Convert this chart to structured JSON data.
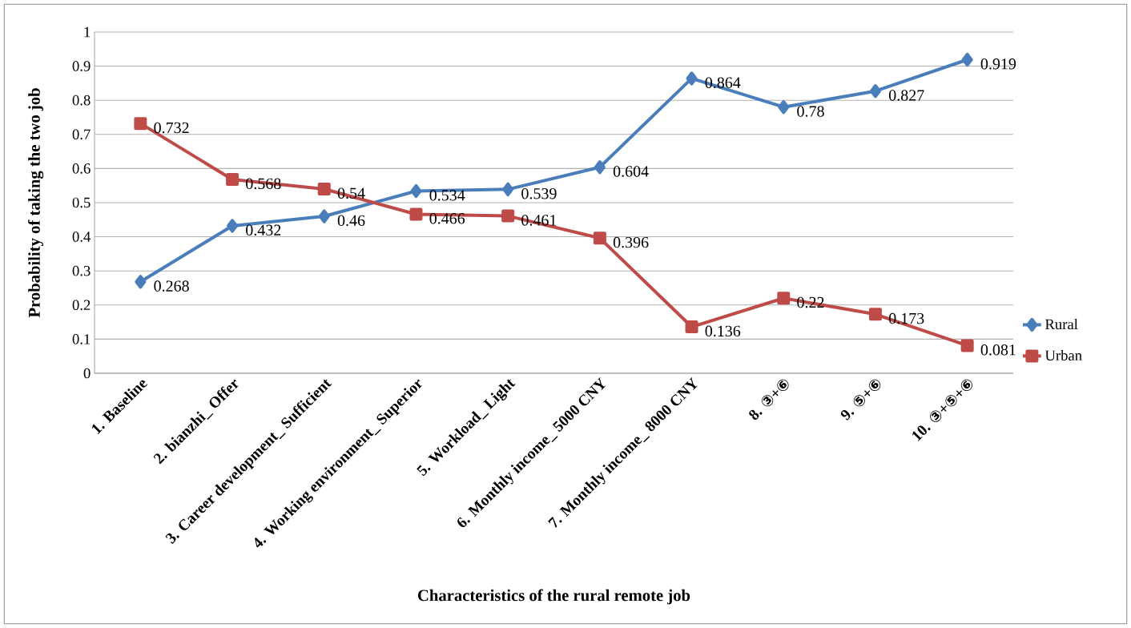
{
  "chart_data": {
    "type": "line",
    "xlabel": "Characteristics   of   the   rural   remote   job",
    "ylabel": "Probability of taking the two job",
    "categories": [
      "1. Baseline",
      "2. bianzhi_ Offer",
      "3. Career development_ Sufficient",
      "4. Working environment_ Superior",
      "5. Workload_ Light",
      "6. Monthly income_ 5000 CNY",
      "7. Monthly income_ 8000 CNY",
      "8. ③+⑥",
      "9. ⑤+⑥",
      "10. ③+⑤+⑥"
    ],
    "series": [
      {
        "name": "Rural",
        "color": "#4a7ebb",
        "marker": "diamond",
        "values": [
          0.268,
          0.432,
          0.46,
          0.534,
          0.539,
          0.604,
          0.864,
          0.78,
          0.827,
          0.919
        ]
      },
      {
        "name": "Urban",
        "color": "#be4b48",
        "marker": "square",
        "values": [
          0.732,
          0.568,
          0.54,
          0.466,
          0.461,
          0.396,
          0.136,
          0.22,
          0.173,
          0.081
        ]
      }
    ],
    "ylim": [
      0,
      1
    ],
    "yticks": [
      0,
      0.1,
      0.2,
      0.3,
      0.4,
      0.5,
      0.6,
      0.7,
      0.8,
      0.9,
      1
    ],
    "grid": "y",
    "legend": "bottom right",
    "data_labels": true
  }
}
